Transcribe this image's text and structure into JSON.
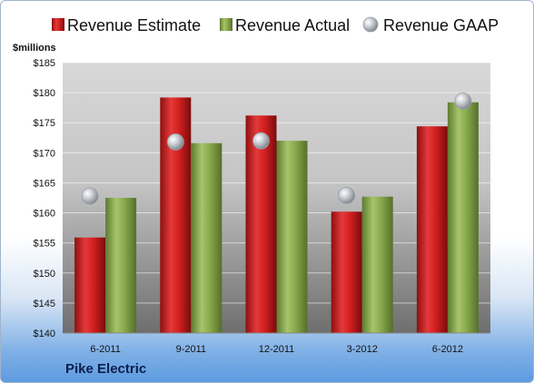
{
  "company": "Pike Electric",
  "chart_data": {
    "type": "bar",
    "ylabel": "$millions",
    "categories": [
      "6-2011",
      "9-2011",
      "12-2011",
      "3-2012",
      "6-2012"
    ],
    "ylim": [
      140,
      185
    ],
    "yticks": [
      140,
      145,
      150,
      155,
      160,
      165,
      170,
      175,
      180,
      185
    ],
    "ytick_labels": [
      "$140",
      "$145",
      "$150",
      "$155",
      "$160",
      "$165",
      "$170",
      "$175",
      "$180",
      "$185"
    ],
    "grid": true,
    "legend_position": "top",
    "series": [
      {
        "name": "Revenue Estimate",
        "kind": "bar",
        "color": "#d42020",
        "values": [
          155.9,
          179.2,
          176.2,
          160.2,
          174.4
        ]
      },
      {
        "name": "Revenue Actual",
        "kind": "bar",
        "color": "#8aaa4e",
        "values": [
          162.5,
          171.6,
          172.0,
          162.7,
          178.4
        ]
      },
      {
        "name": "Revenue GAAP",
        "kind": "marker",
        "color": "#b8bcc4",
        "values": [
          162.8,
          171.8,
          172.0,
          162.9,
          178.6
        ]
      }
    ]
  }
}
